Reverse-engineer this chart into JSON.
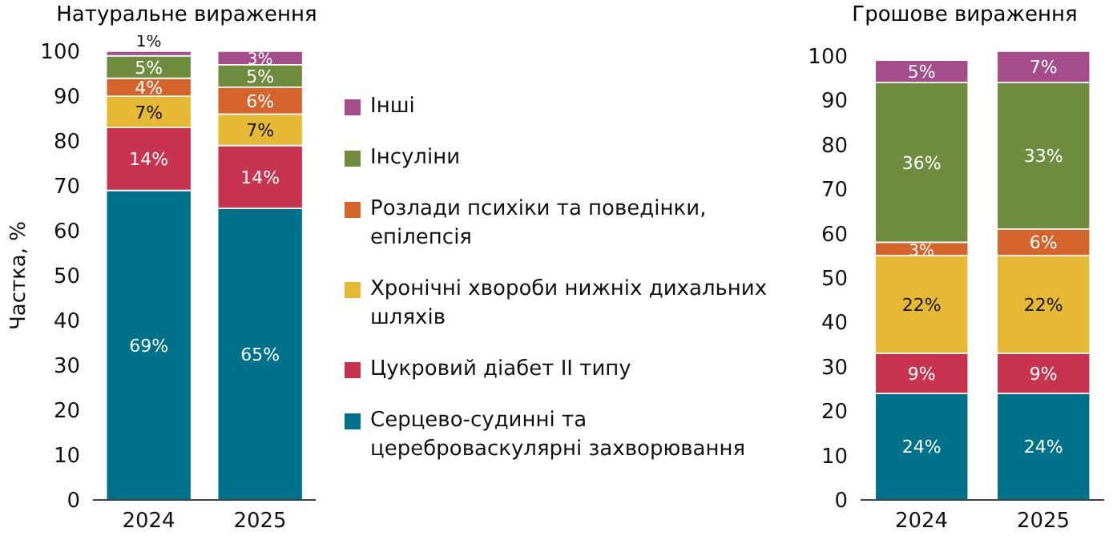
{
  "chart_data": [
    {
      "type": "bar",
      "title": "Натуральне вираження",
      "ylabel": "Частка, %",
      "categories": [
        "2024",
        "2025"
      ],
      "stacked": true,
      "legend": "right",
      "ylim": [
        0,
        100
      ],
      "yticks": [
        0,
        10,
        20,
        30,
        40,
        50,
        60,
        70,
        80,
        90,
        100
      ],
      "series": [
        {
          "name": "Серцево-судинні та цереброваскулярні захворювання",
          "color": "#00718a",
          "values": [
            69,
            65
          ],
          "value_labels": [
            "69%",
            "65%"
          ]
        },
        {
          "name": "Цукровий діабет II типу",
          "color": "#c8334f",
          "values": [
            14,
            14
          ],
          "value_labels": [
            "14%",
            "14%"
          ]
        },
        {
          "name": "Хронічні хвороби нижніх дихальних шляхів",
          "color": "#e6b934",
          "values": [
            7,
            7
          ],
          "value_labels": [
            "7%",
            "7%"
          ]
        },
        {
          "name": "Розлади психіки та поведінки, епілепсія",
          "color": "#d4642c",
          "values": [
            4,
            6
          ],
          "value_labels": [
            "4%",
            "6%"
          ]
        },
        {
          "name": "Інсуліни",
          "color": "#6f8c3e",
          "values": [
            5,
            5
          ],
          "value_labels": [
            "5%",
            "5%"
          ]
        },
        {
          "name": "Інші",
          "color": "#a54d8a",
          "values": [
            1,
            3
          ],
          "value_labels": [
            "1%",
            "3%"
          ]
        }
      ]
    },
    {
      "type": "bar",
      "title": "Грошове вираження",
      "categories": [
        "2024",
        "2025"
      ],
      "stacked": true,
      "ylim": [
        0,
        101
      ],
      "yticks": [
        0,
        10,
        20,
        30,
        40,
        50,
        60,
        70,
        80,
        90,
        100
      ],
      "series": [
        {
          "color": "#00718a",
          "values": [
            24,
            24
          ],
          "value_labels": [
            "24%",
            "24%"
          ]
        },
        {
          "color": "#c8334f",
          "values": [
            9,
            9
          ],
          "value_labels": [
            "9%",
            "9%"
          ]
        },
        {
          "color": "#e6b934",
          "values": [
            22,
            22
          ],
          "value_labels": [
            "22%",
            "22%"
          ]
        },
        {
          "color": "#d4642c",
          "values": [
            3,
            6
          ],
          "value_labels": [
            "3%",
            "6%"
          ]
        },
        {
          "color": "#6f8c3e",
          "values": [
            36,
            33
          ],
          "value_labels": [
            "36%",
            "33%"
          ]
        },
        {
          "color": "#a54d8a",
          "values": [
            5,
            7
          ],
          "value_labels": [
            "5%",
            "7%"
          ]
        }
      ]
    }
  ]
}
